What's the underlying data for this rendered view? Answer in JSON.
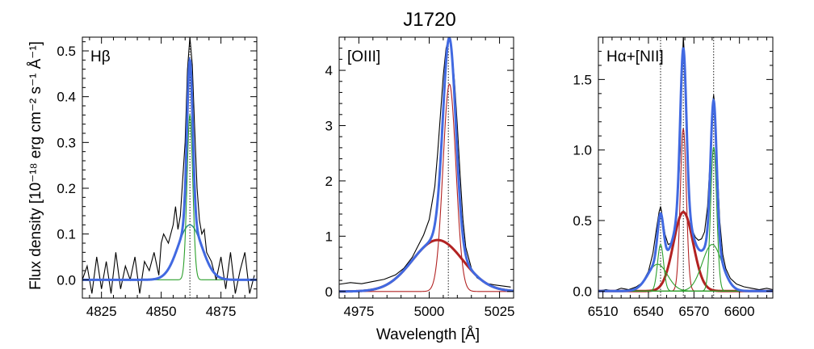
{
  "figure": {
    "title": "J1720",
    "xlabel": "Wavelength [Å]",
    "ylabel": "Flux density [10⁻¹⁸ erg cm⁻² s⁻¹ Å⁻¹]"
  },
  "chart_data": [
    {
      "type": "line",
      "panel_label": "Hβ",
      "xlim": [
        4817,
        4890
      ],
      "ylim": [
        -0.04,
        0.53
      ],
      "xticks": [
        4825,
        4850,
        4875
      ],
      "xtick_labels": [
        "4825",
        "4850",
        "4875"
      ],
      "yticks": [
        0.0,
        0.1,
        0.2,
        0.3,
        0.4,
        0.5
      ],
      "ytick_labels": [
        "0.0",
        "0.1",
        "0.2",
        "0.3",
        "0.4",
        "0.5"
      ],
      "vlines": [
        4862
      ],
      "colors": {
        "data": "#000000",
        "total": "#4169e1",
        "broad": "#2e8b8b",
        "narrow": "#2ca02c"
      },
      "components": [
        {
          "role": "broad",
          "center": 4862,
          "sigma": 5.0,
          "amp": 0.12
        },
        {
          "role": "narrow",
          "center": 4862,
          "sigma": 1.2,
          "amp": 0.36
        }
      ],
      "observed": {
        "x": [
          4817,
          4819,
          4821,
          4823,
          4825,
          4827,
          4829,
          4831,
          4833,
          4835,
          4837,
          4839,
          4841,
          4843,
          4845,
          4847,
          4849,
          4850,
          4851,
          4853,
          4854,
          4855,
          4856,
          4857,
          4858,
          4859,
          4860,
          4861,
          4862,
          4863,
          4864,
          4865,
          4866,
          4867,
          4868,
          4869,
          4871,
          4873,
          4875,
          4877,
          4879,
          4881,
          4883,
          4885,
          4887,
          4889
        ],
        "y": [
          0.0,
          0.03,
          -0.03,
          0.05,
          -0.02,
          0.04,
          -0.03,
          0.06,
          -0.02,
          0.03,
          0.0,
          0.05,
          -0.03,
          0.04,
          0.02,
          0.06,
          0.01,
          0.08,
          0.1,
          0.08,
          0.1,
          0.12,
          0.16,
          0.11,
          0.14,
          0.22,
          0.3,
          0.46,
          0.53,
          0.47,
          0.33,
          0.2,
          0.13,
          0.1,
          0.11,
          0.06,
          0.04,
          0.0,
          0.05,
          -0.02,
          0.06,
          -0.03,
          0.02,
          0.06,
          -0.03,
          0.01
        ]
      }
    },
    {
      "type": "line",
      "panel_label": "[OIII]",
      "xlim": [
        4968,
        5030
      ],
      "ylim": [
        -0.12,
        4.6
      ],
      "xticks": [
        4975,
        5000,
        5025
      ],
      "xtick_labels": [
        "4975",
        "5000",
        "5025"
      ],
      "yticks": [
        0,
        1,
        2,
        3,
        4
      ],
      "ytick_labels": [
        "0",
        "1",
        "2",
        "3",
        "4"
      ],
      "vlines": [
        5006.8
      ],
      "colors": {
        "data": "#000000",
        "total": "#4169e1",
        "broad": "#b22222",
        "narrow": "#b22222"
      },
      "components": [
        {
          "role": "broad",
          "center": 5003,
          "sigma": 9.0,
          "amp": 0.93
        },
        {
          "role": "narrow",
          "center": 5007.2,
          "sigma": 2.3,
          "amp": 3.75
        }
      ],
      "observed": {
        "x": [
          4968,
          4972,
          4976,
          4980,
          4984,
          4988,
          4991,
          4994,
          4996,
          4998,
          5000,
          5002,
          5003,
          5004,
          5005,
          5006,
          5007,
          5008,
          5009,
          5010,
          5011,
          5012,
          5013,
          5015,
          5017,
          5020,
          5023,
          5026,
          5029
        ],
        "y": [
          0.13,
          0.16,
          0.14,
          0.18,
          0.22,
          0.3,
          0.42,
          0.62,
          0.82,
          1.02,
          1.3,
          1.9,
          2.5,
          3.2,
          3.9,
          4.4,
          4.6,
          4.4,
          3.8,
          3.0,
          2.1,
          1.3,
          0.8,
          0.42,
          0.25,
          0.15,
          0.12,
          0.1,
          0.08
        ]
      }
    },
    {
      "type": "line",
      "panel_label": "Hα+[NII]",
      "xlim": [
        6507,
        6622
      ],
      "ylim": [
        -0.05,
        1.8
      ],
      "xticks": [
        6510,
        6540,
        6570,
        6600
      ],
      "xtick_labels": [
        "6510",
        "6540",
        "6570",
        "6600"
      ],
      "yticks": [
        0.0,
        0.5,
        1.0,
        1.5
      ],
      "ytick_labels": [
        "0.0",
        "0.5",
        "1.0",
        "1.5"
      ],
      "vlines": [
        6548,
        6563,
        6583
      ],
      "colors": {
        "data": "#000000",
        "total": "#4169e1",
        "broad": "#b22222",
        "narrow": "#b22222",
        "nii": "#2ca02c"
      },
      "components": [
        {
          "role": "broad",
          "center": 6563,
          "sigma": 6.5,
          "amp": 0.56
        },
        {
          "role": "narrow",
          "center": 6563,
          "sigma": 2.0,
          "amp": 1.15
        },
        {
          "role": "nii",
          "center": 6548,
          "sigma": 2.0,
          "amp": 0.33
        },
        {
          "role": "nii",
          "center": 6583,
          "sigma": 2.0,
          "amp": 1.02
        },
        {
          "role": "nii",
          "center": 6546,
          "sigma": 6.5,
          "amp": 0.19
        },
        {
          "role": "nii",
          "center": 6582,
          "sigma": 6.5,
          "amp": 0.33
        }
      ],
      "observed": {
        "x": [
          6507,
          6512,
          6517,
          6522,
          6527,
          6532,
          6536,
          6540,
          6543,
          6545,
          6547,
          6548,
          6549,
          6551,
          6553,
          6555,
          6557,
          6559,
          6561,
          6562,
          6563,
          6564,
          6565,
          6567,
          6569,
          6571,
          6573,
          6575,
          6577,
          6579,
          6581,
          6582,
          6583,
          6584,
          6585,
          6587,
          6589,
          6591,
          6594,
          6598,
          6603,
          6608,
          6613,
          6618,
          6622
        ],
        "y": [
          0.0,
          0.01,
          0.0,
          0.02,
          0.01,
          0.03,
          0.06,
          0.14,
          0.27,
          0.42,
          0.56,
          0.6,
          0.54,
          0.4,
          0.33,
          0.34,
          0.42,
          0.58,
          1.0,
          1.5,
          1.8,
          1.62,
          1.2,
          0.62,
          0.43,
          0.38,
          0.36,
          0.37,
          0.42,
          0.6,
          1.0,
          1.3,
          1.39,
          1.28,
          0.98,
          0.5,
          0.26,
          0.16,
          0.09,
          0.05,
          0.03,
          0.02,
          0.01,
          0.02,
          0.01
        ]
      }
    }
  ]
}
